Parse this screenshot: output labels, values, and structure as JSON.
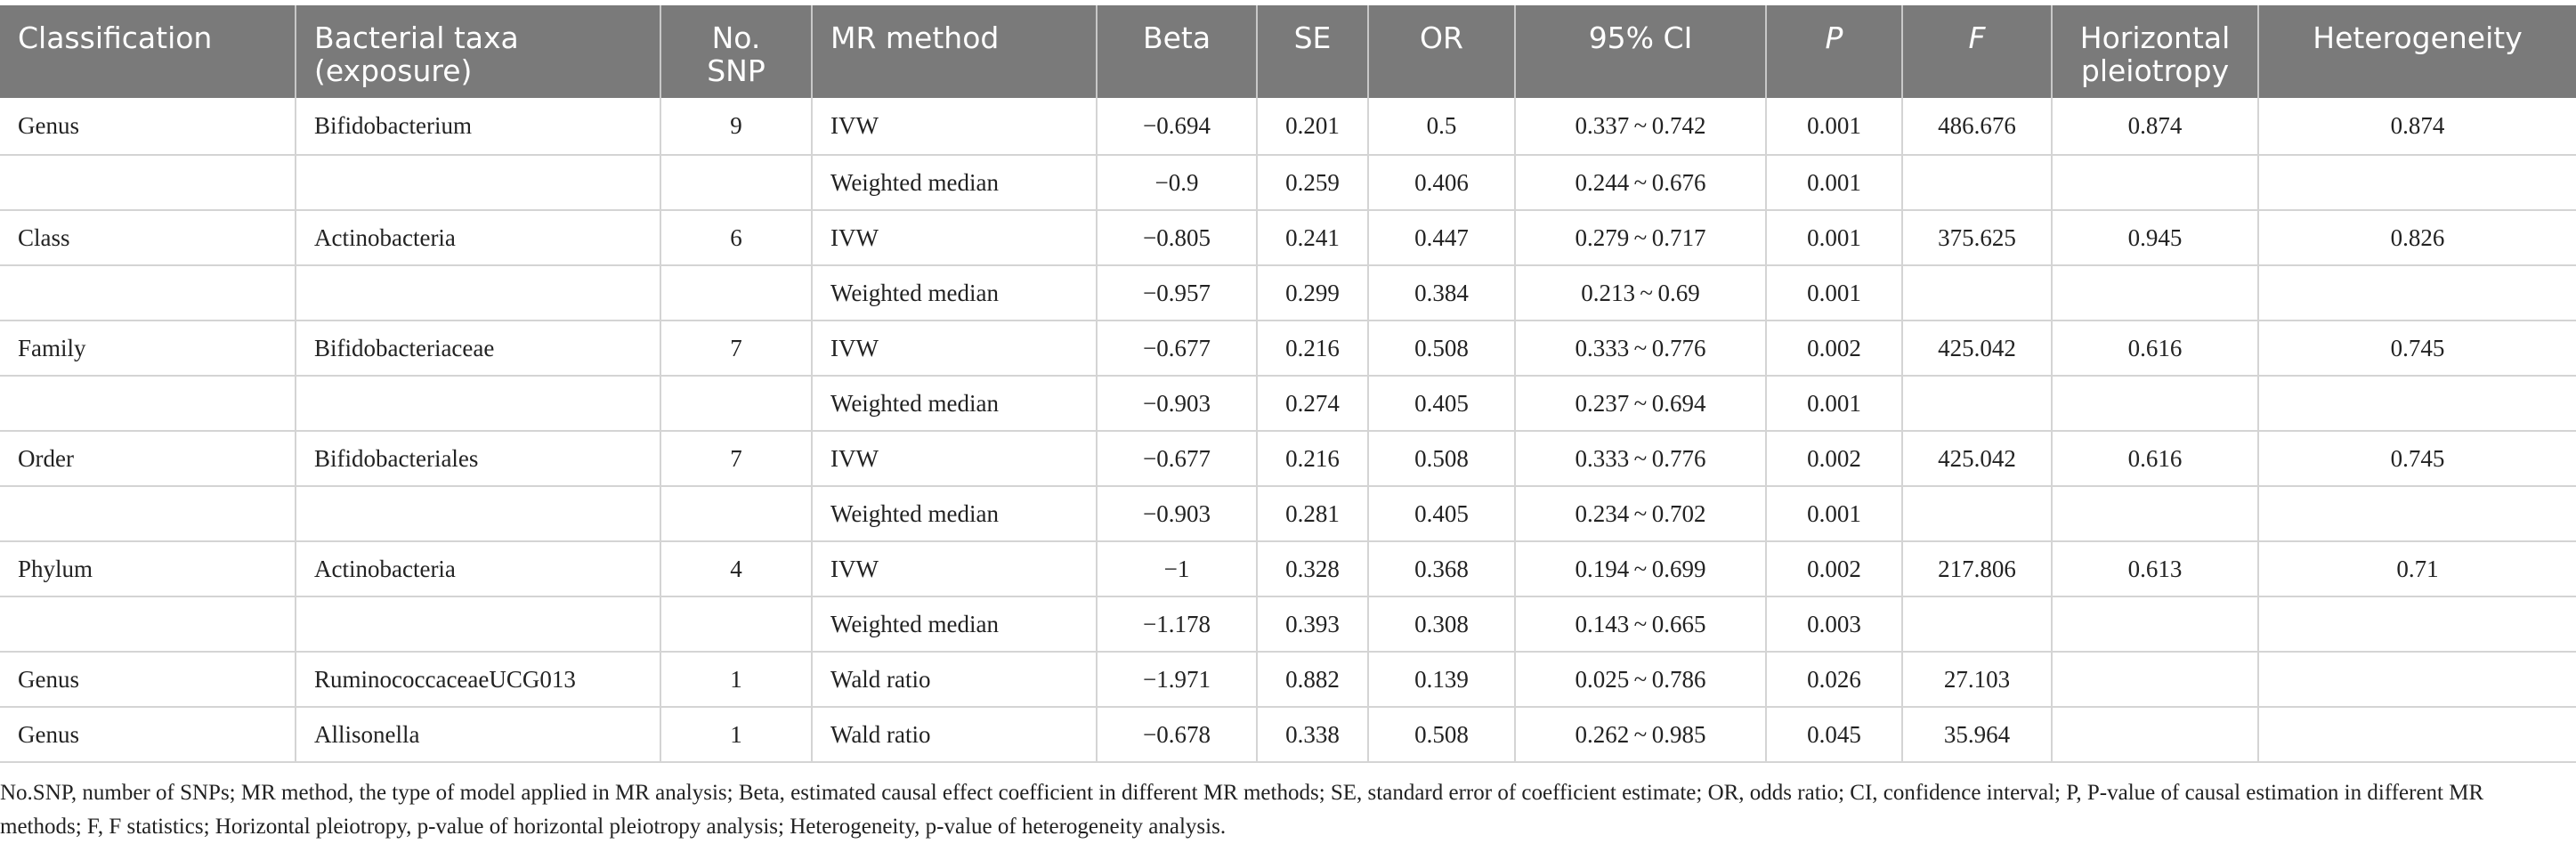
{
  "headers": [
    "Classification",
    "Bacterial taxa (exposure)",
    "No. SNP",
    "MR method",
    "Beta",
    "SE",
    "OR",
    "95% CI",
    "P",
    "F",
    "Horizontal pleiotropy",
    "Heterogeneity"
  ],
  "rows": [
    [
      "Genus",
      "Bifidobacterium",
      "9",
      "IVW",
      "−0.694",
      "0.201",
      "0.5",
      "0.337 ~ 0.742",
      "0.001",
      "486.676",
      "0.874",
      "0.874"
    ],
    [
      "",
      "",
      "",
      "Weighted median",
      "−0.9",
      "0.259",
      "0.406",
      "0.244 ~ 0.676",
      "0.001",
      "",
      "",
      ""
    ],
    [
      "Class",
      "Actinobacteria",
      "6",
      "IVW",
      "−0.805",
      "0.241",
      "0.447",
      "0.279 ~ 0.717",
      "0.001",
      "375.625",
      "0.945",
      "0.826"
    ],
    [
      "",
      "",
      "",
      "Weighted median",
      "−0.957",
      "0.299",
      "0.384",
      "0.213 ~ 0.69",
      "0.001",
      "",
      "",
      ""
    ],
    [
      "Family",
      "Bifidobacteriaceae",
      "7",
      "IVW",
      "−0.677",
      "0.216",
      "0.508",
      "0.333 ~ 0.776",
      "0.002",
      "425.042",
      "0.616",
      "0.745"
    ],
    [
      "",
      "",
      "",
      "Weighted median",
      "−0.903",
      "0.274",
      "0.405",
      "0.237 ~ 0.694",
      "0.001",
      "",
      "",
      ""
    ],
    [
      "Order",
      "Bifidobacteriales",
      "7",
      "IVW",
      "−0.677",
      "0.216",
      "0.508",
      "0.333 ~ 0.776",
      "0.002",
      "425.042",
      "0.616",
      "0.745"
    ],
    [
      "",
      "",
      "",
      "Weighted median",
      "−0.903",
      "0.281",
      "0.405",
      "0.234 ~ 0.702",
      "0.001",
      "",
      "",
      ""
    ],
    [
      "Phylum",
      "Actinobacteria",
      "4",
      "IVW",
      "−1",
      "0.328",
      "0.368",
      "0.194 ~ 0.699",
      "0.002",
      "217.806",
      "0.613",
      "0.71"
    ],
    [
      "",
      "",
      "",
      "Weighted median",
      "−1.178",
      "0.393",
      "0.308",
      "0.143 ~ 0.665",
      "0.003",
      "",
      "",
      ""
    ],
    [
      "Genus",
      "RuminococcaceaeUCG013",
      "1",
      "Wald ratio",
      "−1.971",
      "0.882",
      "0.139",
      "0.025 ~ 0.786",
      "0.026",
      "27.103",
      "",
      ""
    ],
    [
      "Genus",
      "Allisonella",
      "1",
      "Wald ratio",
      "−0.678",
      "0.338",
      "0.508",
      "0.262 ~ 0.985",
      "0.045",
      "35.964",
      "",
      ""
    ]
  ],
  "footnote": "No.SNP, number of SNPs; MR method, the type of model applied in MR analysis; Beta, estimated causal effect coefficient in different MR methods; SE, standard error of coefficient estimate; OR, odds ratio; CI, confidence interval; P, P-value of causal estimation in different MR methods; F, F statistics; Horizontal pleiotropy, p-value of horizontal pleiotropy analysis; Heterogeneity, p-value of heterogeneity analysis."
}
